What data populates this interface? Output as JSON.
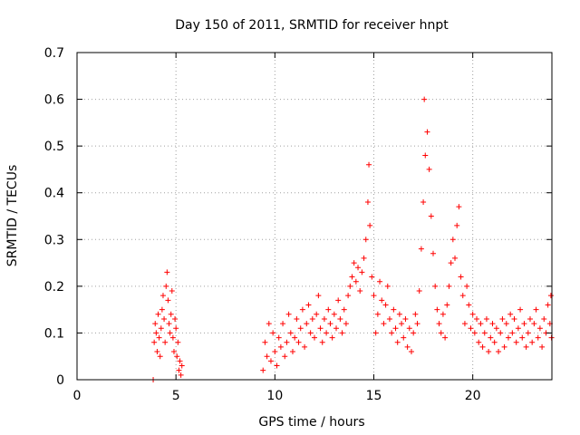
{
  "chart_data": {
    "type": "scatter",
    "title": "Day 150 of 2011, SRMTID for receiver hnpt",
    "xlabel": "GPS time / hours",
    "ylabel": "SRMTID / TECUs",
    "xlim": [
      0,
      24
    ],
    "ylim": [
      0,
      0.7
    ],
    "x_ticks": [
      0,
      5,
      10,
      15,
      20
    ],
    "x_tick_labels": [
      "0",
      "5",
      "10",
      "15",
      "20"
    ],
    "y_ticks": [
      0,
      0.1,
      0.2,
      0.3,
      0.4,
      0.5,
      0.6,
      0.7
    ],
    "y_tick_labels": [
      "0",
      "0.1",
      "0.2",
      "0.3",
      "0.4",
      "0.5",
      "0.6",
      "0.7"
    ],
    "grid": true,
    "marker": "+",
    "color": "#ff0000",
    "series": [
      {
        "name": "SRMTID",
        "points": [
          [
            3.85,
            0.0
          ],
          [
            3.9,
            0.08
          ],
          [
            3.95,
            0.12
          ],
          [
            4.0,
            0.1
          ],
          [
            4.05,
            0.06
          ],
          [
            4.1,
            0.14
          ],
          [
            4.15,
            0.09
          ],
          [
            4.2,
            0.05
          ],
          [
            4.25,
            0.11
          ],
          [
            4.3,
            0.15
          ],
          [
            4.35,
            0.18
          ],
          [
            4.4,
            0.13
          ],
          [
            4.45,
            0.08
          ],
          [
            4.5,
            0.2
          ],
          [
            4.55,
            0.23
          ],
          [
            4.6,
            0.17
          ],
          [
            4.65,
            0.12
          ],
          [
            4.7,
            0.1
          ],
          [
            4.75,
            0.14
          ],
          [
            4.8,
            0.19
          ],
          [
            4.85,
            0.09
          ],
          [
            4.9,
            0.06
          ],
          [
            4.95,
            0.13
          ],
          [
            5.0,
            0.11
          ],
          [
            5.05,
            0.05
          ],
          [
            5.1,
            0.08
          ],
          [
            5.15,
            0.02
          ],
          [
            5.2,
            0.04
          ],
          [
            5.25,
            0.01
          ],
          [
            5.3,
            0.03
          ],
          [
            9.4,
            0.02
          ],
          [
            9.5,
            0.08
          ],
          [
            9.6,
            0.05
          ],
          [
            9.7,
            0.12
          ],
          [
            9.8,
            0.04
          ],
          [
            9.9,
            0.1
          ],
          [
            10.0,
            0.06
          ],
          [
            10.1,
            0.03
          ],
          [
            10.2,
            0.09
          ],
          [
            10.3,
            0.07
          ],
          [
            10.4,
            0.12
          ],
          [
            10.5,
            0.05
          ],
          [
            10.6,
            0.08
          ],
          [
            10.7,
            0.14
          ],
          [
            10.8,
            0.1
          ],
          [
            10.9,
            0.06
          ],
          [
            11.0,
            0.09
          ],
          [
            11.1,
            0.13
          ],
          [
            11.2,
            0.08
          ],
          [
            11.3,
            0.11
          ],
          [
            11.4,
            0.15
          ],
          [
            11.5,
            0.07
          ],
          [
            11.6,
            0.12
          ],
          [
            11.7,
            0.16
          ],
          [
            11.8,
            0.1
          ],
          [
            11.9,
            0.13
          ],
          [
            12.0,
            0.09
          ],
          [
            12.1,
            0.14
          ],
          [
            12.2,
            0.18
          ],
          [
            12.3,
            0.11
          ],
          [
            12.4,
            0.08
          ],
          [
            12.5,
            0.13
          ],
          [
            12.6,
            0.1
          ],
          [
            12.7,
            0.15
          ],
          [
            12.8,
            0.12
          ],
          [
            12.9,
            0.09
          ],
          [
            13.0,
            0.14
          ],
          [
            13.1,
            0.11
          ],
          [
            13.2,
            0.17
          ],
          [
            13.3,
            0.13
          ],
          [
            13.4,
            0.1
          ],
          [
            13.5,
            0.15
          ],
          [
            13.6,
            0.12
          ],
          [
            13.7,
            0.18
          ],
          [
            13.8,
            0.2
          ],
          [
            13.9,
            0.22
          ],
          [
            14.0,
            0.25
          ],
          [
            14.1,
            0.21
          ],
          [
            14.2,
            0.24
          ],
          [
            14.3,
            0.19
          ],
          [
            14.4,
            0.23
          ],
          [
            14.5,
            0.26
          ],
          [
            14.6,
            0.3
          ],
          [
            14.7,
            0.38
          ],
          [
            14.75,
            0.46
          ],
          [
            14.8,
            0.33
          ],
          [
            14.9,
            0.22
          ],
          [
            15.0,
            0.18
          ],
          [
            15.1,
            0.1
          ],
          [
            15.2,
            0.14
          ],
          [
            15.3,
            0.21
          ],
          [
            15.4,
            0.17
          ],
          [
            15.5,
            0.12
          ],
          [
            15.6,
            0.16
          ],
          [
            15.7,
            0.2
          ],
          [
            15.8,
            0.13
          ],
          [
            15.9,
            0.1
          ],
          [
            16.0,
            0.15
          ],
          [
            16.1,
            0.11
          ],
          [
            16.2,
            0.08
          ],
          [
            16.3,
            0.14
          ],
          [
            16.4,
            0.12
          ],
          [
            16.5,
            0.09
          ],
          [
            16.6,
            0.13
          ],
          [
            16.7,
            0.07
          ],
          [
            16.8,
            0.11
          ],
          [
            16.9,
            0.06
          ],
          [
            17.0,
            0.1
          ],
          [
            17.1,
            0.14
          ],
          [
            17.2,
            0.12
          ],
          [
            17.3,
            0.19
          ],
          [
            17.4,
            0.28
          ],
          [
            17.5,
            0.38
          ],
          [
            17.55,
            0.6
          ],
          [
            17.6,
            0.48
          ],
          [
            17.7,
            0.53
          ],
          [
            17.8,
            0.45
          ],
          [
            17.9,
            0.35
          ],
          [
            18.0,
            0.27
          ],
          [
            18.1,
            0.2
          ],
          [
            18.2,
            0.15
          ],
          [
            18.3,
            0.12
          ],
          [
            18.4,
            0.1
          ],
          [
            18.5,
            0.14
          ],
          [
            18.6,
            0.09
          ],
          [
            18.7,
            0.16
          ],
          [
            18.8,
            0.2
          ],
          [
            18.9,
            0.25
          ],
          [
            19.0,
            0.3
          ],
          [
            19.1,
            0.26
          ],
          [
            19.2,
            0.33
          ],
          [
            19.3,
            0.37
          ],
          [
            19.4,
            0.22
          ],
          [
            19.5,
            0.18
          ],
          [
            19.6,
            0.12
          ],
          [
            19.7,
            0.2
          ],
          [
            19.8,
            0.16
          ],
          [
            19.9,
            0.11
          ],
          [
            20.0,
            0.14
          ],
          [
            20.1,
            0.1
          ],
          [
            20.2,
            0.13
          ],
          [
            20.3,
            0.08
          ],
          [
            20.4,
            0.12
          ],
          [
            20.5,
            0.07
          ],
          [
            20.6,
            0.1
          ],
          [
            20.7,
            0.13
          ],
          [
            20.8,
            0.06
          ],
          [
            20.9,
            0.09
          ],
          [
            21.0,
            0.12
          ],
          [
            21.1,
            0.08
          ],
          [
            21.2,
            0.11
          ],
          [
            21.3,
            0.06
          ],
          [
            21.4,
            0.1
          ],
          [
            21.5,
            0.13
          ],
          [
            21.6,
            0.07
          ],
          [
            21.7,
            0.12
          ],
          [
            21.8,
            0.09
          ],
          [
            21.9,
            0.14
          ],
          [
            22.0,
            0.1
          ],
          [
            22.1,
            0.13
          ],
          [
            22.2,
            0.08
          ],
          [
            22.3,
            0.11
          ],
          [
            22.4,
            0.15
          ],
          [
            22.5,
            0.09
          ],
          [
            22.6,
            0.12
          ],
          [
            22.7,
            0.07
          ],
          [
            22.8,
            0.1
          ],
          [
            22.9,
            0.13
          ],
          [
            23.0,
            0.08
          ],
          [
            23.1,
            0.12
          ],
          [
            23.2,
            0.15
          ],
          [
            23.3,
            0.09
          ],
          [
            23.4,
            0.11
          ],
          [
            23.5,
            0.07
          ],
          [
            23.6,
            0.13
          ],
          [
            23.7,
            0.1
          ],
          [
            23.8,
            0.16
          ],
          [
            23.9,
            0.12
          ],
          [
            23.95,
            0.18
          ],
          [
            23.98,
            0.09
          ]
        ]
      }
    ]
  }
}
